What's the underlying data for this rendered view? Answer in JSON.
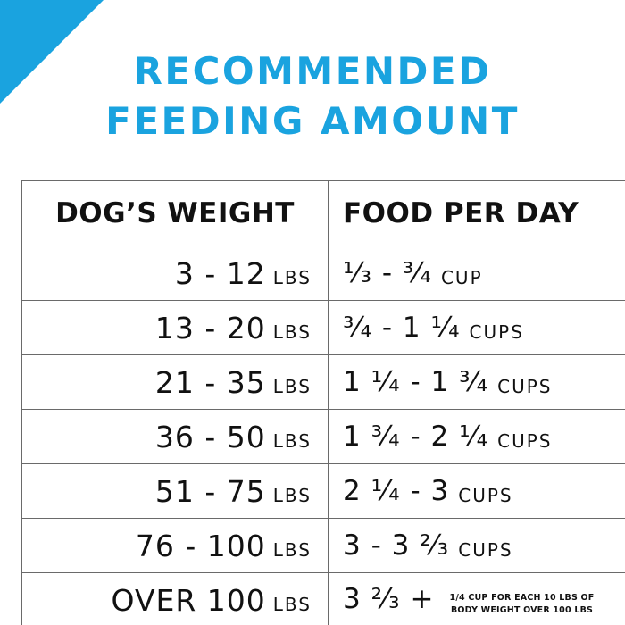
{
  "accent_color": "#1aa3df",
  "title": {
    "line1": "RECOMMENDED",
    "line2": "FEEDING AMOUNT"
  },
  "table": {
    "headers": [
      "DOG’S WEIGHT",
      "FOOD PER DAY"
    ],
    "rows": [
      {
        "weight": "3 - 12",
        "weight_unit": "LBS",
        "food": "¹⁄₃ - ³⁄₄",
        "food_unit": "CUP"
      },
      {
        "weight": "13 - 20",
        "weight_unit": "LBS",
        "food": "³⁄₄ - 1 ¹⁄₄",
        "food_unit": "CUPS"
      },
      {
        "weight": "21 - 35",
        "weight_unit": "LBS",
        "food": "1 ¹⁄₄ - 1 ³⁄₄",
        "food_unit": "CUPS"
      },
      {
        "weight": "36 - 50",
        "weight_unit": "LBS",
        "food": "1 ³⁄₄ - 2 ¹⁄₄",
        "food_unit": "CUPS"
      },
      {
        "weight": "51 - 75",
        "weight_unit": "LBS",
        "food": "2 ¹⁄₄ - 3",
        "food_unit": "CUPS"
      },
      {
        "weight": "76 - 100",
        "weight_unit": "LBS",
        "food": "3 - 3 ²⁄₃",
        "food_unit": "CUPS"
      },
      {
        "weight": "OVER 100",
        "weight_unit": "LBS",
        "food": "3 ²⁄₃ +",
        "food_unit": "",
        "note_line1": "1/4 CUP FOR EACH 10 LBS OF",
        "note_line2": "BODY WEIGHT OVER 100 LBS"
      }
    ]
  }
}
